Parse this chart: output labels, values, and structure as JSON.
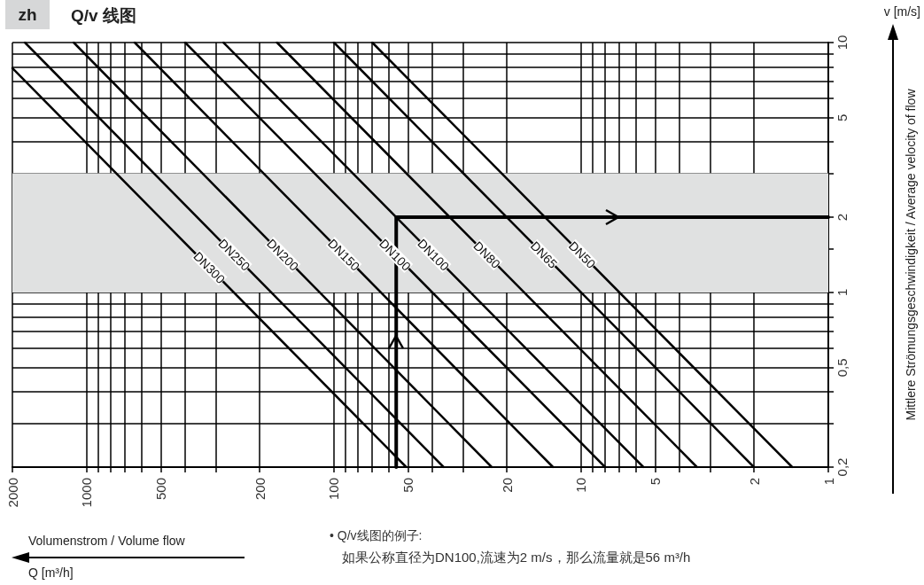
{
  "chart_data": {
    "type": "line",
    "title": "Q/v 线图",
    "subtitle": "zh",
    "xlabel": "Volumenstrom / Volume flow",
    "ylabel": "Mittlere Strömungsgeschwindigkeit / Average velocity of flow",
    "annotations": [
      "v [m/s]",
      "Q [m³/h]",
      "• Q/v线图的例子:",
      "如果公称直径为DN100,流速为2 m/s，那么流量就是56 m³/h"
    ],
    "log": "xy",
    "grid": true,
    "marker": "none",
    "line_style": "solid",
    "xlim": [
      2000,
      1
    ],
    "xticks": [
      2000,
      1000,
      {
        "value": 900,
        "label": null
      },
      {
        "value": 800,
        "label": null
      },
      {
        "value": 700,
        "label": null
      },
      {
        "value": 600,
        "label": null
      },
      500,
      {
        "value": 400,
        "label": null
      },
      {
        "value": 300,
        "label": null
      },
      200,
      100,
      {
        "value": 90,
        "label": null
      },
      {
        "value": 80,
        "label": null
      },
      {
        "value": 70,
        "label": null
      },
      {
        "value": 60,
        "label": null
      },
      50,
      {
        "value": 40,
        "label": null
      },
      {
        "value": 30,
        "label": null
      },
      20,
      10,
      {
        "value": 9,
        "label": null
      },
      {
        "value": 8,
        "label": null
      },
      {
        "value": 7,
        "label": null
      },
      {
        "value": 6,
        "label": null
      },
      5,
      {
        "value": 4,
        "label": null
      },
      {
        "value": 3,
        "label": null
      },
      2,
      1
    ],
    "ylim": [
      0.2,
      10
    ],
    "yticks": [
      {
        "value": 0.2,
        "label": "0,2"
      },
      {
        "value": 0.3,
        "label": null
      },
      {
        "value": 0.4,
        "label": null
      },
      {
        "value": 0.5,
        "label": "0,5"
      },
      {
        "value": 0.6,
        "label": null
      },
      {
        "value": 0.7,
        "label": null
      },
      {
        "value": 0.8,
        "label": null
      },
      {
        "value": 0.9,
        "label": null
      },
      1,
      {
        "value": 1.5,
        "label": null
      },
      2,
      {
        "value": 3,
        "label": null
      },
      {
        "value": 4,
        "label": null
      },
      5,
      {
        "value": 6,
        "label": null
      },
      {
        "value": 7,
        "label": null
      },
      {
        "value": 8,
        "label": null
      },
      {
        "value": 9,
        "label": null
      },
      10
    ],
    "bands": [
      {
        "axis": "y",
        "from": 1,
        "to": 3,
        "color": "#e0e1e1"
      }
    ],
    "series": [
      {
        "name": "DN50",
        "color": "#000000",
        "x": [
          70,
          1.4
        ],
        "values": [
          10,
          0.2
        ]
      },
      {
        "name": "DN65",
        "color": "#000000",
        "x": [
          100,
          2
        ],
        "values": [
          10,
          0.2
        ]
      },
      {
        "name": "DN80",
        "color": "#000000",
        "x": [
          170,
          3.4
        ],
        "values": [
          10,
          0.2
        ]
      },
      {
        "name": "DN100",
        "color": "#000000",
        "x": [
          280,
          5.6
        ],
        "values": [
          10,
          0.2
        ]
      },
      {
        "name": "DN100",
        "color": "#000000",
        "x": [
          400,
          8
        ],
        "values": [
          10,
          0.2
        ]
      },
      {
        "name": "DN150",
        "color": "#000000",
        "x": [
          640,
          13
        ],
        "values": [
          10,
          0.2
        ]
      },
      {
        "name": "DN200",
        "color": "#000000",
        "x": [
          1130,
          23
        ],
        "values": [
          10,
          0.2
        ]
      },
      {
        "name": "DN250",
        "color": "#000000",
        "x": [
          1780,
          36
        ],
        "values": [
          10,
          0.2
        ]
      },
      {
        "name": "DN300",
        "color": "#000000",
        "x": [
          2000,
          51
        ],
        "values": [
          7.9,
          0.2
        ]
      },
      {
        "color": "#000000",
        "x": [
          56,
          56,
          1
        ],
        "values": [
          0.2,
          2,
          2
        ]
      }
    ]
  }
}
